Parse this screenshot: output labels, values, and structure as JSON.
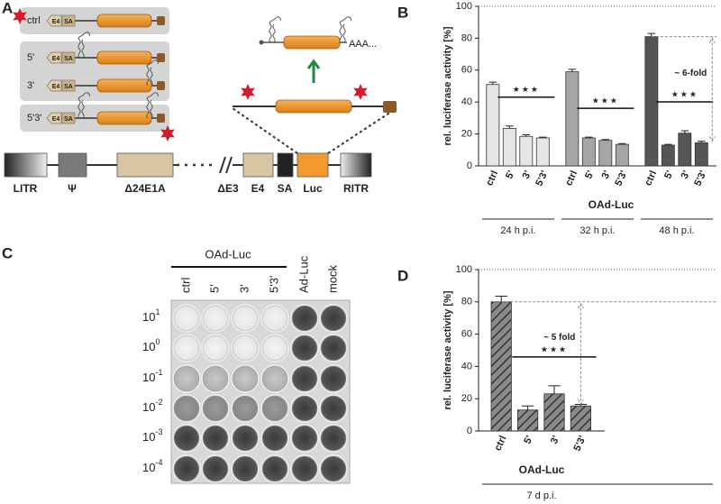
{
  "figure_a": {
    "label": "A",
    "constructs": [
      "ctrl",
      "5'",
      "3'",
      "5'3'"
    ],
    "e4": "E4",
    "sa": "SA",
    "poly_a": "AAA...",
    "genome": [
      "LITR",
      "Ψ",
      "Δ24E1A",
      "ΔE3",
      "E4",
      "SA",
      "Luc",
      "RITR"
    ]
  },
  "chart_data": [
    {
      "type": "bar",
      "label": "B",
      "ylabel": "rel. luciferase activity [%]",
      "xlabel": "OAd-Luc",
      "categories": [
        "ctrl",
        "5'",
        "3'",
        "5'3'",
        "ctrl",
        "5'",
        "3'",
        "5'3'",
        "ctrl",
        "5'",
        "3'",
        "5'3'"
      ],
      "values": [
        51,
        23.5,
        18.5,
        17.5,
        59,
        17.5,
        16,
        13.5,
        81,
        13,
        20.5,
        14.5
      ],
      "errors": [
        1.5,
        1.5,
        1,
        0.5,
        1.5,
        0.5,
        0.5,
        0.5,
        2,
        0.5,
        1.5,
        1
      ],
      "groups": [
        {
          "label": "24 h p.i.",
          "color": "#e6e6e6"
        },
        {
          "label": "32 h p.i.",
          "color": "#a6a6a6"
        },
        {
          "label": "48 h p.i.",
          "color": "#555555"
        }
      ],
      "ylim": [
        0,
        100
      ],
      "yticks": [
        0,
        20,
        40,
        60,
        80,
        100
      ],
      "annotation": "~ 6-fold",
      "significance": "★★★",
      "hatch": false
    },
    {
      "type": "bar",
      "label": "D",
      "ylabel": "rel. luciferase activity [%]",
      "xlabel": "OAd-Luc",
      "categories": [
        "ctrl",
        "5'",
        "3'",
        "5'3'"
      ],
      "values": [
        80,
        13,
        23,
        15.5
      ],
      "errors": [
        3.5,
        2.5,
        5,
        1
      ],
      "groups": [
        {
          "label": "7 d p.i.",
          "color": "#7a7a7a"
        }
      ],
      "ylim": [
        0,
        100
      ],
      "yticks": [
        0,
        20,
        40,
        60,
        80,
        100
      ],
      "annotation": "~ 5 fold",
      "significance": "★★★",
      "hatch": true
    }
  ],
  "figure_c": {
    "label": "C",
    "group": "OAd-Luc",
    "columns": [
      "ctrl",
      "5'",
      "3'",
      "5'3'",
      "Ad-Luc",
      "mock"
    ],
    "rows": [
      {
        "base": "10",
        "exponent": "1"
      },
      {
        "base": "10",
        "exponent": "0"
      },
      {
        "base": "10",
        "exponent": "-1"
      },
      {
        "base": "10",
        "exponent": "-2"
      },
      {
        "base": "10",
        "exponent": "-3"
      },
      {
        "base": "10",
        "exponent": "-4"
      }
    ]
  }
}
